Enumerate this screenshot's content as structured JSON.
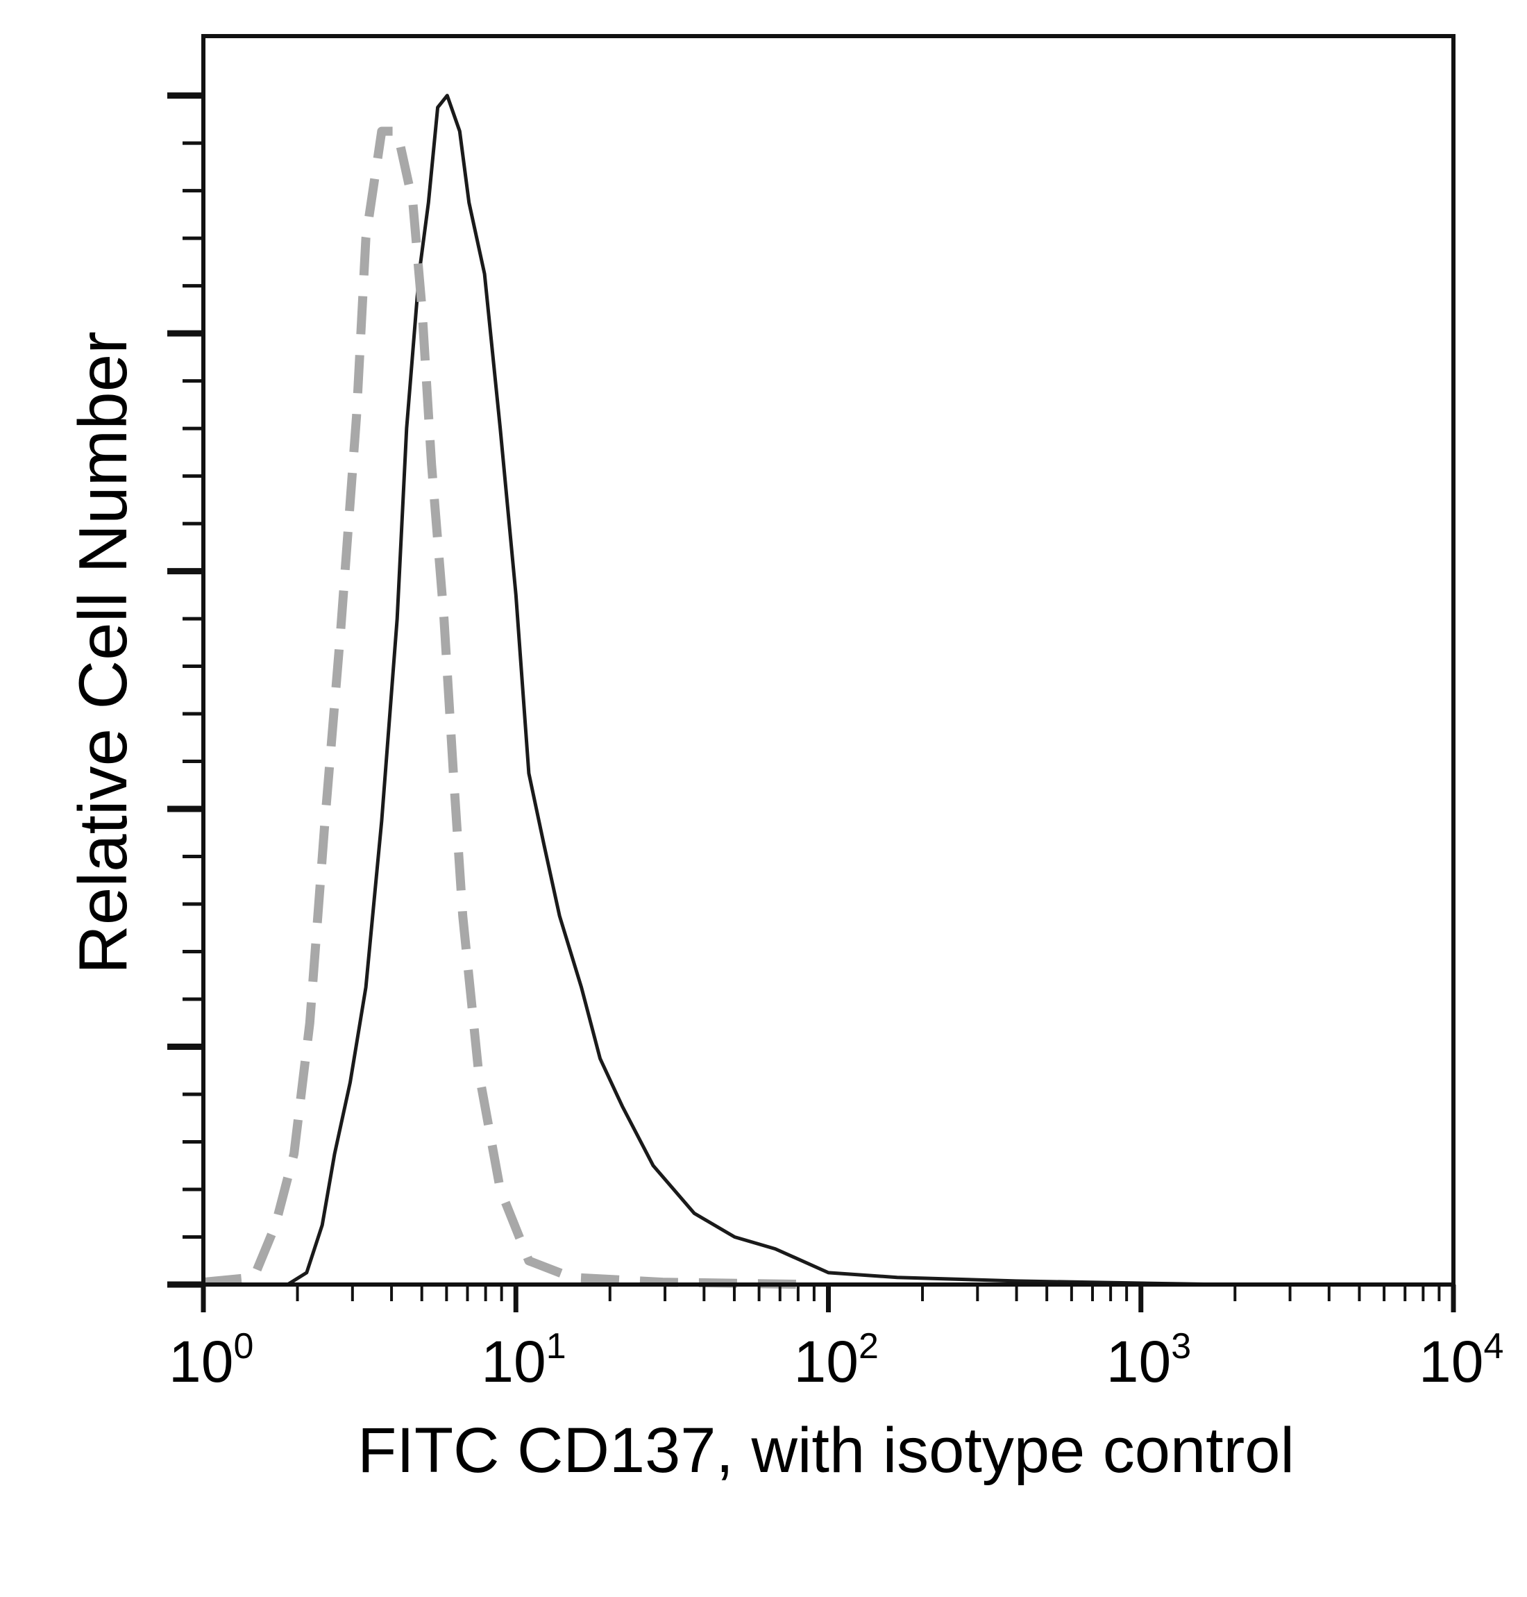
{
  "chart_data": {
    "type": "line",
    "title": "",
    "xlabel": "FITC CD137, with isotype control",
    "ylabel": "Relative Cell Number",
    "xscale": "log",
    "xlim": [
      1,
      10000
    ],
    "ylim": [
      0,
      105
    ],
    "x_tick_labels": [
      {
        "base": "10",
        "exp": "0",
        "value": 1
      },
      {
        "base": "10",
        "exp": "1",
        "value": 10
      },
      {
        "base": "10",
        "exp": "2",
        "value": 100
      },
      {
        "base": "10",
        "exp": "3",
        "value": 1000
      },
      {
        "base": "10",
        "exp": "4",
        "value": 10000
      }
    ],
    "y_major_ticks": [
      0,
      20,
      40,
      60,
      80,
      100
    ],
    "y_minor_per_major": 4,
    "grid": false,
    "legend": "none",
    "series": [
      {
        "name": "FITC CD137",
        "style": "solid",
        "color": "#1a1a1a",
        "x": [
          1.86,
          2.14,
          2.4,
          2.63,
          2.95,
          3.31,
          3.72,
          4.17,
          4.47,
          4.9,
          5.25,
          5.62,
          6.03,
          6.61,
          7.08,
          7.94,
          8.91,
          10,
          11.0,
          12.3,
          13.8,
          16.2,
          18.6,
          21.9,
          27.5,
          37.2,
          50.1,
          67.6,
          100,
          166,
          398,
          1862,
          10000
        ],
        "y": [
          0,
          1,
          5,
          11,
          17,
          25,
          39,
          56,
          72,
          85,
          91,
          99,
          100,
          97,
          91,
          85,
          72,
          58,
          43,
          37,
          31,
          25,
          19,
          15,
          10,
          6,
          4,
          3,
          1,
          0.6,
          0.3,
          0,
          0
        ]
      },
      {
        "name": "Isotype control",
        "style": "dashed",
        "color": "#a8a8a8",
        "x": [
          1,
          1.45,
          1.7,
          1.95,
          2.19,
          2.45,
          2.75,
          3.09,
          3.31,
          3.72,
          4.17,
          4.68,
          5.01,
          5.37,
          5.89,
          6.31,
          6.76,
          7.59,
          8.91,
          11.0,
          15.1,
          29.5,
          91.2
        ],
        "y": [
          0.2,
          0.6,
          5,
          11,
          22,
          39,
          55,
          73,
          88,
          97,
          97,
          91,
          82,
          69,
          56,
          43,
          31,
          18,
          8,
          2,
          0.6,
          0.2,
          0
        ]
      }
    ]
  }
}
